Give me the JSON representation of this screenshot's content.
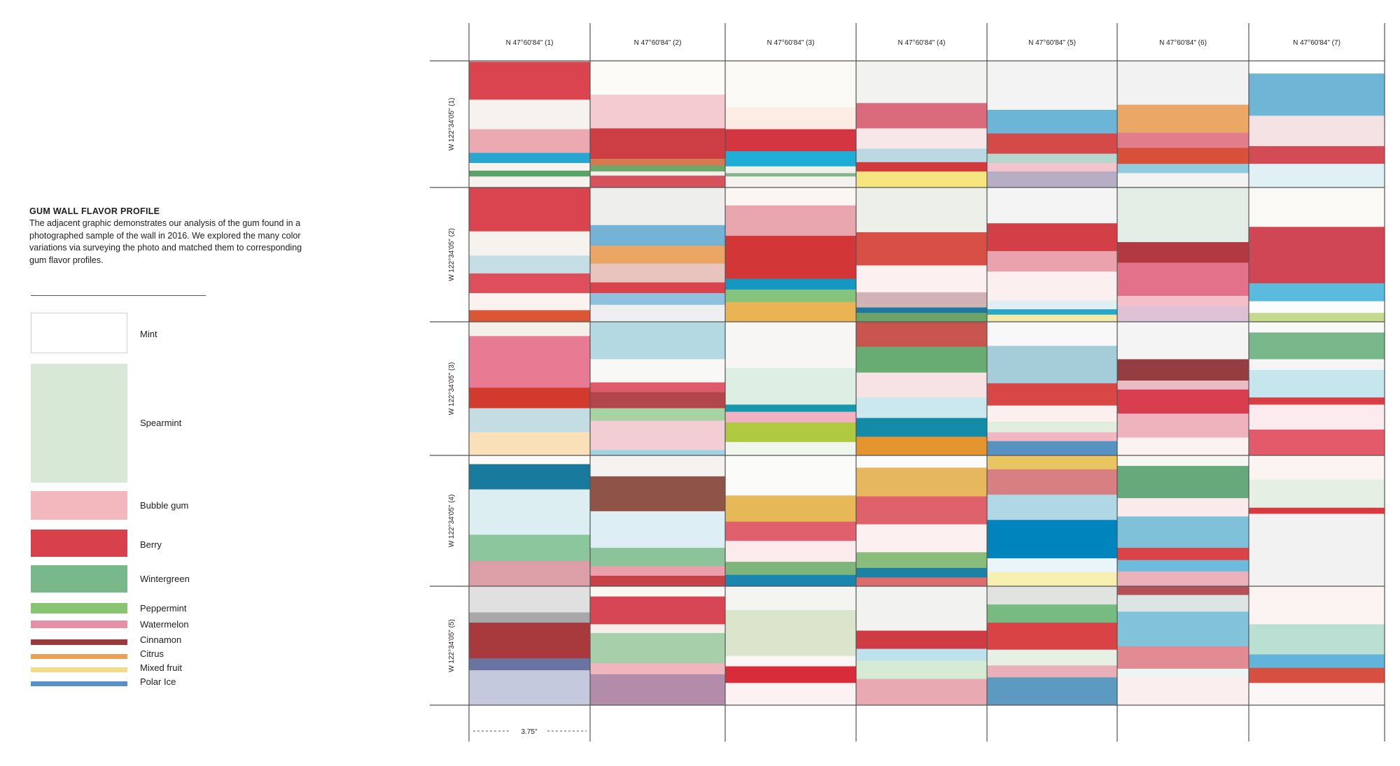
{
  "intro": {
    "title": "GUM WALL FLAVOR PROFILE",
    "body": "The adjacent graphic demonstrates our analysis of the gum found in a photographed sample of the wall in 2016. We explored the many color variations via surveying the photo and matched them to corresponding gum flavor profiles."
  },
  "legend": [
    {
      "name": "Mint",
      "color": "#ffffff",
      "border": "#cfcfcf"
    },
    {
      "name": "Spearmint",
      "color": "#d8e8d6"
    },
    {
      "name": "Bubble gum",
      "color": "#f2b8bd"
    },
    {
      "name": "Berry",
      "color": "#d8404c"
    },
    {
      "name": "Wintergreen",
      "color": "#78b88a"
    },
    {
      "name": "Peppermint",
      "color": "#88c472"
    },
    {
      "name": "Watermelon",
      "color": "#e690a8"
    },
    {
      "name": "Cinnamon",
      "color": "#9a3a3a"
    },
    {
      "name": "Citrus",
      "color": "#eba055"
    },
    {
      "name": "Mixed fruit",
      "color": "#f2dc88"
    },
    {
      "name": "Polar Ice",
      "color": "#5a90c8"
    }
  ],
  "columns": [
    "N 47°60'84\"  (1)",
    "N 47°60'84\"  (2)",
    "N 47°60'84\"  (3)",
    "N 47°60'84\"  (4)",
    "N 47°60'84\"  (5)",
    "N 47°60'84\"  (6)",
    "N 47°60'84\"  (7)"
  ],
  "rows": [
    "W 122°34'05\"  (1)",
    "W 122°34'05\"  (2)",
    "W 122°34'05\"  (3)",
    "W 122°34'05\"  (4)",
    "W 122°34'05\"  (5)"
  ],
  "dimension_label": "3.75\"",
  "cells": [
    [
      [
        [
          1,
          "#d9444e"
        ],
        [
          46,
          "#f6f3ee"
        ],
        [
          81,
          "#eca9b2"
        ],
        [
          109,
          "#27a6d2"
        ],
        [
          121,
          "#f6f3ee"
        ],
        [
          130,
          "#5aa268"
        ],
        [
          137,
          "#f6f3ee"
        ]
      ],
      [
        [
          0,
          "#fcfbf8"
        ],
        [
          40,
          "#f4cbd0"
        ],
        [
          80,
          "#cc3e44"
        ],
        [
          116,
          "#d47a52"
        ],
        [
          124,
          "#6ca86a"
        ],
        [
          131,
          "#f2eeea"
        ],
        [
          136,
          "#d6535d"
        ]
      ],
      [
        [
          0,
          "#faf9f6"
        ],
        [
          55,
          "#fcece4"
        ],
        [
          81,
          "#d33640"
        ],
        [
          107,
          "#1eaed5"
        ],
        [
          125,
          "#edf1ec"
        ],
        [
          133,
          "#86b48c"
        ],
        [
          137,
          "#f4f1ee"
        ]
      ],
      [
        [
          0,
          "#f2f2f0"
        ],
        [
          50,
          "#da6b7d"
        ],
        [
          80,
          "#f7e7e8"
        ],
        [
          104,
          "#bcd8e3"
        ],
        [
          120,
          "#d1393f"
        ],
        [
          131,
          "#f6e47e"
        ]
      ],
      [
        [
          0,
          "#f3f3f3"
        ],
        [
          58,
          "#6cb5d7"
        ],
        [
          86,
          "#d34a48"
        ],
        [
          110,
          "#b7d6ce"
        ],
        [
          121,
          "#f2c4cc"
        ],
        [
          131,
          "#b5aec4"
        ]
      ],
      [
        [
          0,
          "#f2f2f2"
        ],
        [
          52,
          "#eba765"
        ],
        [
          85,
          "#e27d8c"
        ],
        [
          103,
          "#d84f3a"
        ],
        [
          122,
          "#93cbde"
        ],
        [
          133,
          "#f3f3f3"
        ]
      ],
      [
        [
          0,
          "#ffffff"
        ],
        [
          15,
          "#6fb5d6"
        ],
        [
          65,
          "#f5e2e4"
        ],
        [
          101,
          "#d34c55"
        ],
        [
          122,
          "#e0f0f4"
        ]
      ]
    ],
    [
      [
        [
          0,
          "#d9444e"
        ],
        [
          49,
          "#f6f3ee"
        ],
        [
          76,
          "#c5dde5"
        ],
        [
          96,
          "#df4f5b"
        ],
        [
          118,
          "#fcf3f1"
        ],
        [
          137,
          "#dc5535"
        ]
      ],
      [
        [
          0,
          "#eeeeec"
        ],
        [
          42,
          "#74b3d6"
        ],
        [
          65,
          "#eba665"
        ],
        [
          85,
          "#e9c4be"
        ],
        [
          106,
          "#d8434e"
        ],
        [
          118,
          "#8fc1df"
        ],
        [
          131,
          "#eeeff0"
        ]
      ],
      [
        [
          0,
          "#fcf6f3"
        ],
        [
          20,
          "#e9a5ae"
        ],
        [
          54,
          "#d23637"
        ],
        [
          102,
          "#1497c0"
        ],
        [
          114,
          "#88c27f"
        ],
        [
          128,
          "#eab454"
        ]
      ],
      [
        [
          0,
          "#edefe9"
        ],
        [
          50,
          "#d84f46"
        ],
        [
          87,
          "#fdf0f0"
        ],
        [
          117,
          "#d2b3b5"
        ],
        [
          134,
          "#1e77a1"
        ],
        [
          140,
          "#6ba368"
        ]
      ],
      [
        [
          0,
          "#f4f4f4"
        ],
        [
          40,
          "#d23f47"
        ],
        [
          71,
          "#eaa3ac"
        ],
        [
          94,
          "#fcefef"
        ],
        [
          126,
          "#dff0f3"
        ],
        [
          136,
          "#28a7c7"
        ],
        [
          142,
          "#f3eaa9"
        ]
      ],
      [
        [
          0,
          "#e4ede6"
        ],
        [
          61,
          "#b23941"
        ],
        [
          84,
          "#e3718a"
        ],
        [
          121,
          "#f3bfc8"
        ],
        [
          133,
          "#ddc1d5"
        ]
      ],
      [
        [
          0,
          "#faf9f6"
        ],
        [
          44,
          "#d14654"
        ],
        [
          107,
          "#5bbbde"
        ],
        [
          127,
          "#fcfcfc"
        ],
        [
          140,
          "#c5d98f"
        ]
      ]
    ],
    [
      [
        [
          0,
          "#f4efe9"
        ],
        [
          16,
          "#e87b93"
        ],
        [
          74,
          "#d23a2e"
        ],
        [
          97,
          "#c4dde3"
        ],
        [
          124,
          "#fae0b8"
        ]
      ],
      [
        [
          0,
          "#b4d9e2"
        ],
        [
          42,
          "#f8f8f6"
        ],
        [
          68,
          "#df5b6c"
        ],
        [
          79,
          "#b3454d"
        ],
        [
          97,
          "#a6d3a1"
        ],
        [
          111,
          "#f3cdd4"
        ],
        [
          144,
          "#9fd4e5"
        ]
      ],
      [
        [
          0,
          "#f7f6f4"
        ],
        [
          52,
          "#ddeee2"
        ],
        [
          93,
          "#1597ad"
        ],
        [
          101,
          "#f2b2c1"
        ],
        [
          113,
          "#afc941"
        ],
        [
          135,
          "#f0f6eb"
        ]
      ],
      [
        [
          0,
          "#c9554f"
        ],
        [
          28,
          "#68ac74"
        ],
        [
          57,
          "#f7e3e3"
        ],
        [
          85,
          "#cbe8ee"
        ],
        [
          108,
          "#138aa7"
        ],
        [
          129,
          "#e5952f"
        ]
      ],
      [
        [
          0,
          "#f8f8f8"
        ],
        [
          27,
          "#a5cdd9"
        ],
        [
          69,
          "#d94646"
        ],
        [
          94,
          "#fcf0ef"
        ],
        [
          112,
          "#e1eedd"
        ],
        [
          124,
          "#f2b6c5"
        ],
        [
          134,
          "#5693c2"
        ]
      ],
      [
        [
          0,
          "#f4f4f4"
        ],
        [
          42,
          "#953e42"
        ],
        [
          66,
          "#ebbcc6"
        ],
        [
          76,
          "#d83e4f"
        ],
        [
          103,
          "#efb3bd"
        ],
        [
          130,
          "#fbf2f2"
        ]
      ],
      [
        [
          0,
          "#f8f8f6"
        ],
        [
          12,
          "#78b78a"
        ],
        [
          42,
          "#f5f5f5"
        ],
        [
          54,
          "#c6e6ee"
        ],
        [
          85,
          "#d93d45"
        ],
        [
          93,
          "#fbeaee"
        ],
        [
          121,
          "#e35a6b"
        ]
      ]
    ],
    [
      [
        [
          0,
          "#fbfaf8"
        ],
        [
          10,
          "#187a9c"
        ],
        [
          39,
          "#ddeef3"
        ],
        [
          91,
          "#8cc69c"
        ],
        [
          121,
          "#dc9ea7"
        ]
      ],
      [
        [
          0,
          "#f5f2f0"
        ],
        [
          24,
          "#8f5447"
        ],
        [
          64,
          "#ddeff4"
        ],
        [
          106,
          "#8cc39a"
        ],
        [
          127,
          "#e9a0aa"
        ],
        [
          138,
          "#c94148"
        ]
      ],
      [
        [
          0,
          "#fbfbf9"
        ],
        [
          46,
          "#e7b857"
        ],
        [
          76,
          "#e0616d"
        ],
        [
          98,
          "#fcebed"
        ],
        [
          122,
          "#7db57c"
        ],
        [
          137,
          "#1a85ae"
        ]
      ],
      [
        [
          0,
          "#fafafa"
        ],
        [
          14,
          "#e7b75d"
        ],
        [
          47,
          "#df616c"
        ],
        [
          79,
          "#fdf0f0"
        ],
        [
          111,
          "#8abc7c"
        ],
        [
          129,
          "#1b82a4"
        ],
        [
          140,
          "#dc6b70"
        ]
      ],
      [
        [
          0,
          "#e8c560"
        ],
        [
          16,
          "#d77f83"
        ],
        [
          45,
          "#afd7e6"
        ],
        [
          74,
          "#0084bd"
        ],
        [
          118,
          "#e9f5f8"
        ],
        [
          134,
          "#f7f0b0"
        ]
      ],
      [
        [
          0,
          "#f4f7f2"
        ],
        [
          12,
          "#67a97b"
        ],
        [
          49,
          "#f9eaeb"
        ],
        [
          70,
          "#7fc1d8"
        ],
        [
          106,
          "#da4448"
        ],
        [
          120,
          "#6cbddd"
        ],
        [
          133,
          "#eab1bb"
        ]
      ],
      [
        [
          0,
          "#fcf3f3"
        ],
        [
          28,
          "#e5efe3"
        ],
        [
          60,
          "#d93a3f"
        ],
        [
          67,
          "#f2f2f2"
        ]
      ]
    ],
    [
      [
        [
          0,
          "#dfe0df"
        ],
        [
          33,
          "#a8a8a8"
        ],
        [
          46,
          "#a83a3e"
        ],
        [
          91,
          "#6a73a1"
        ],
        [
          106,
          "#c4c9de"
        ]
      ],
      [
        [
          0,
          "#f9f7f4"
        ],
        [
          13,
          "#d54652"
        ],
        [
          48,
          "#f7eeea"
        ],
        [
          59,
          "#a7cfa9"
        ],
        [
          97,
          "#efb6c0"
        ],
        [
          111,
          "#b28ca8"
        ]
      ],
      [
        [
          0,
          "#f4f4f0"
        ],
        [
          30,
          "#dbe5cc"
        ],
        [
          88,
          "#fbf6f6"
        ],
        [
          101,
          "#d92c3b"
        ],
        [
          122,
          "#fcf2f4"
        ]
      ],
      [
        [
          0,
          "#f2f2f0"
        ],
        [
          56,
          "#cf3c44"
        ],
        [
          79,
          "#bde2ed"
        ],
        [
          94,
          "#d6ead4"
        ],
        [
          117,
          "#e9a9b2"
        ]
      ],
      [
        [
          0,
          "#e1e3e0"
        ],
        [
          23,
          "#77bb83"
        ],
        [
          46,
          "#d94346"
        ],
        [
          80,
          "#e6f0e4"
        ],
        [
          100,
          "#eab0b8"
        ],
        [
          115,
          "#5c9ac2"
        ]
      ],
      [
        [
          0,
          "#b65057"
        ],
        [
          11,
          "#dde5e4"
        ],
        [
          32,
          "#82c3da"
        ],
        [
          76,
          "#e28b92"
        ],
        [
          104,
          "#edf5f4"
        ],
        [
          115,
          "#fbeeee"
        ]
      ],
      [
        [
          0,
          "#fcf3f3"
        ],
        [
          48,
          "#b9e0d2"
        ],
        [
          86,
          "#62b5da"
        ],
        [
          103,
          "#d64f40"
        ],
        [
          122,
          "#fbf7f7"
        ]
      ]
    ]
  ]
}
